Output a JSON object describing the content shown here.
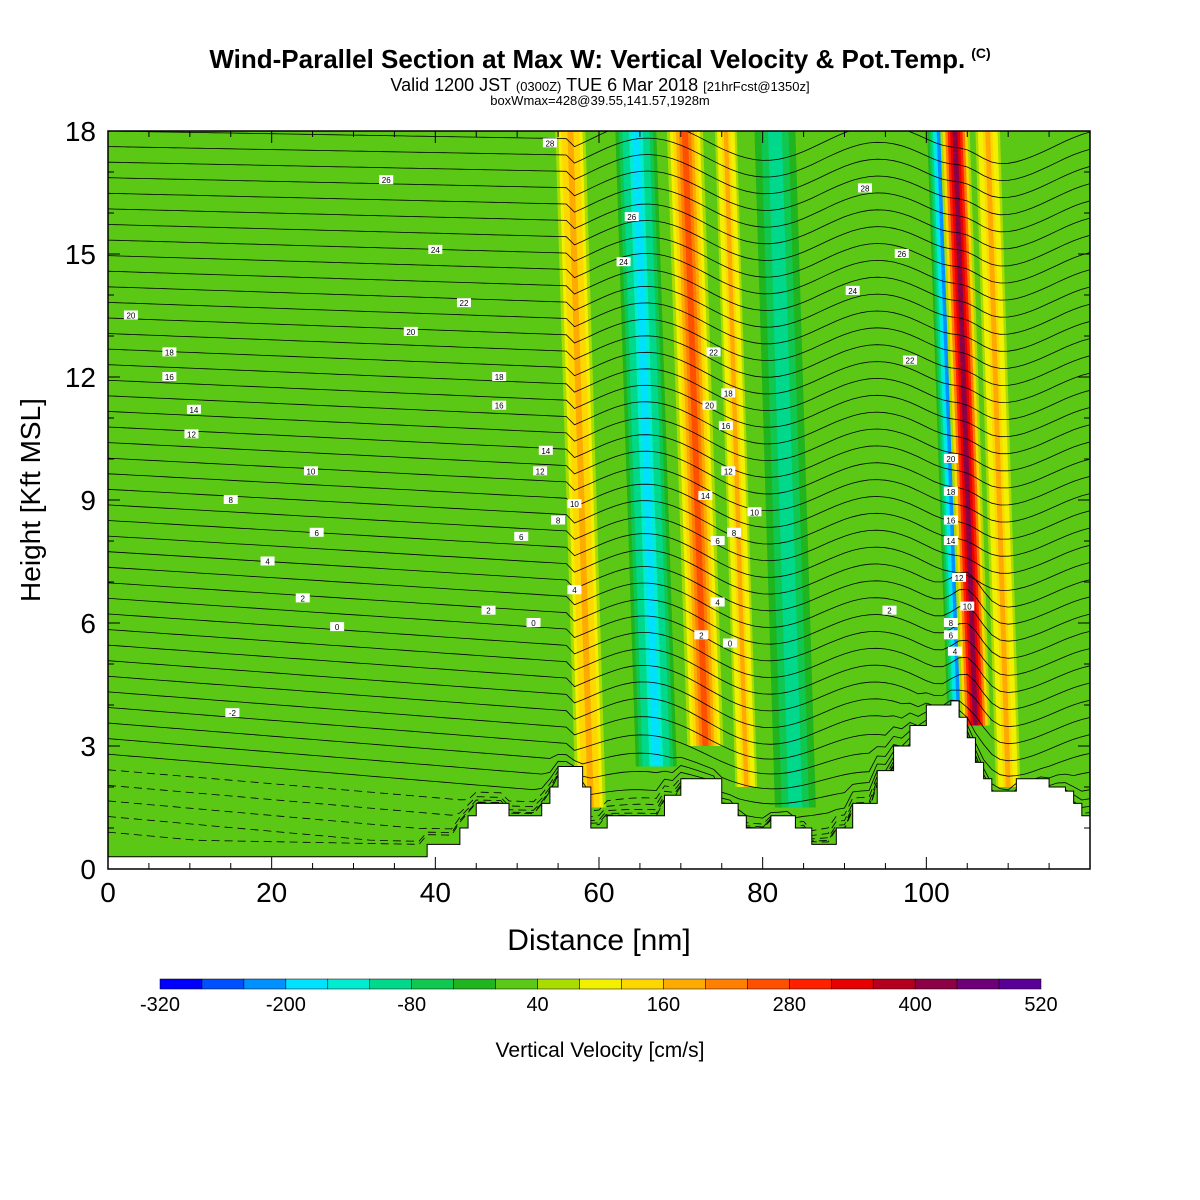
{
  "title": {
    "main": "Wind-Parallel Section at Max W: Vertical Velocity & Pot.Temp.",
    "copyright": "(C)",
    "valid_prefix": "Valid 1200 JST",
    "valid_utc": "(0300Z)",
    "valid_date": "TUE 6 Mar 2018",
    "valid_fcst": "[21hrFcst@1350z]",
    "box_info": "boxWmax=428@39.55,141.57,1928m"
  },
  "chart_data": {
    "type": "heatmap",
    "xlabel": "Distance [nm]",
    "ylabel": "Height [Kft MSL]",
    "xlim": [
      0,
      120
    ],
    "ylim": [
      0,
      18
    ],
    "x_ticks": [
      0,
      20,
      40,
      60,
      80,
      100
    ],
    "y_ticks": [
      0,
      3,
      6,
      9,
      12,
      15,
      18
    ],
    "colorbar": {
      "label": "Vertical Velocity [cm/s]",
      "tick_labels": [
        "-320",
        "-200",
        "-80",
        "40",
        "160",
        "280",
        "400",
        "520"
      ],
      "levels": [
        -320,
        -280,
        -240,
        -200,
        -160,
        -120,
        -80,
        -40,
        0,
        40,
        80,
        120,
        160,
        200,
        240,
        280,
        320,
        360,
        400,
        440,
        480,
        520
      ],
      "colors": [
        "#0000ff",
        "#0050ff",
        "#0090ff",
        "#00e0ff",
        "#00ecd0",
        "#00d98c",
        "#10c850",
        "#20b41e",
        "#5ac814",
        "#aadc00",
        "#f0f000",
        "#ffd700",
        "#ffaa00",
        "#ff8000",
        "#ff5000",
        "#ff2000",
        "#e60000",
        "#b4001e",
        "#8c0046",
        "#6e0078",
        "#5a0096"
      ]
    },
    "terrain_kft": [
      [
        0,
        0.3
      ],
      [
        38,
        0.3
      ],
      [
        39,
        0.6
      ],
      [
        41,
        0.6
      ],
      [
        43,
        1.0
      ],
      [
        44,
        1.3
      ],
      [
        45,
        1.6
      ],
      [
        48,
        1.6
      ],
      [
        49,
        1.3
      ],
      [
        51,
        1.3
      ],
      [
        53,
        1.6
      ],
      [
        54,
        2.0
      ],
      [
        55,
        2.5
      ],
      [
        57,
        2.5
      ],
      [
        58,
        2.0
      ],
      [
        59,
        1.0
      ],
      [
        60,
        1.0
      ],
      [
        61,
        1.3
      ],
      [
        66,
        1.3
      ],
      [
        68,
        1.8
      ],
      [
        70,
        2.2
      ],
      [
        73,
        2.2
      ],
      [
        75,
        1.6
      ],
      [
        77,
        1.3
      ],
      [
        78,
        1.0
      ],
      [
        80,
        1.0
      ],
      [
        81,
        1.3
      ],
      [
        83,
        1.3
      ],
      [
        84,
        1.0
      ],
      [
        86,
        0.6
      ],
      [
        88,
        0.6
      ],
      [
        89,
        1.0
      ],
      [
        91,
        1.6
      ],
      [
        94,
        2.4
      ],
      [
        96,
        3.0
      ],
      [
        98,
        3.5
      ],
      [
        100,
        4.0
      ],
      [
        103,
        4.1
      ],
      [
        104,
        3.7
      ],
      [
        105,
        3.2
      ],
      [
        106,
        2.6
      ],
      [
        107,
        2.2
      ],
      [
        108,
        1.9
      ],
      [
        110,
        1.9
      ],
      [
        111,
        2.2
      ],
      [
        114,
        2.2
      ],
      [
        115,
        2.0
      ],
      [
        117,
        1.9
      ],
      [
        118,
        1.6
      ],
      [
        119,
        1.3
      ],
      [
        120,
        1.3
      ]
    ],
    "w_field_cm_s": {
      "background": 0,
      "bands": [
        {
          "x": 59,
          "width": 2.2,
          "w": 180,
          "z_bottom": 1.5,
          "z_top": 18
        },
        {
          "x": 67,
          "width": 2.5,
          "w": -180,
          "z_bottom": 2.5,
          "z_top": 18
        },
        {
          "x": 73,
          "width": 2.2,
          "w": 270,
          "z_bottom": 3,
          "z_top": 18
        },
        {
          "x": 78,
          "width": 1.6,
          "w": 170,
          "z_bottom": 2,
          "z_top": 18
        },
        {
          "x": 84,
          "width": 2.5,
          "w": -100,
          "z_bottom": 1.5,
          "z_top": 18
        },
        {
          "x": 104,
          "width": 1.4,
          "w": -240,
          "z_bottom": 3.5,
          "z_top": 18
        },
        {
          "x": 106,
          "width": 1.8,
          "w": 428,
          "z_bottom": 3.5,
          "z_top": 18
        },
        {
          "x": 110,
          "width": 1.8,
          "w": 160,
          "z_bottom": 2,
          "z_top": 18
        }
      ]
    },
    "theta_contour_labels": [
      {
        "x": 2.8,
        "y": 13.5,
        "text": "20"
      },
      {
        "x": 7.5,
        "y": 12.6,
        "text": "18"
      },
      {
        "x": 7.5,
        "y": 12.0,
        "text": "16"
      },
      {
        "x": 10.5,
        "y": 11.2,
        "text": "14"
      },
      {
        "x": 10.2,
        "y": 10.6,
        "text": "12"
      },
      {
        "x": 24.8,
        "y": 9.7,
        "text": "10"
      },
      {
        "x": 15.0,
        "y": 9.0,
        "text": "8"
      },
      {
        "x": 25.5,
        "y": 8.2,
        "text": "6"
      },
      {
        "x": 19.5,
        "y": 7.5,
        "text": "4"
      },
      {
        "x": 23.8,
        "y": 6.6,
        "text": "2"
      },
      {
        "x": 28.0,
        "y": 5.9,
        "text": "0"
      },
      {
        "x": 15.2,
        "y": 3.8,
        "text": "-2"
      },
      {
        "x": 34.0,
        "y": 16.8,
        "text": "26"
      },
      {
        "x": 40.0,
        "y": 15.1,
        "text": "24"
      },
      {
        "x": 43.5,
        "y": 13.8,
        "text": "22"
      },
      {
        "x": 37.0,
        "y": 13.1,
        "text": "20"
      },
      {
        "x": 47.8,
        "y": 12.0,
        "text": "18"
      },
      {
        "x": 47.8,
        "y": 11.3,
        "text": "16"
      },
      {
        "x": 53.5,
        "y": 10.2,
        "text": "14"
      },
      {
        "x": 52.8,
        "y": 9.7,
        "text": "12"
      },
      {
        "x": 57.0,
        "y": 8.9,
        "text": "10"
      },
      {
        "x": 55.0,
        "y": 8.5,
        "text": "8"
      },
      {
        "x": 50.5,
        "y": 8.1,
        "text": "6"
      },
      {
        "x": 57.0,
        "y": 6.8,
        "text": "4"
      },
      {
        "x": 46.5,
        "y": 6.3,
        "text": "2"
      },
      {
        "x": 52.0,
        "y": 6.0,
        "text": "0"
      },
      {
        "x": 54.0,
        "y": 17.7,
        "text": "28"
      },
      {
        "x": 64.0,
        "y": 15.9,
        "text": "26"
      },
      {
        "x": 63.0,
        "y": 14.8,
        "text": "24"
      },
      {
        "x": 74.0,
        "y": 12.6,
        "text": "22"
      },
      {
        "x": 73.5,
        "y": 11.3,
        "text": "20"
      },
      {
        "x": 75.8,
        "y": 11.6,
        "text": "18"
      },
      {
        "x": 75.5,
        "y": 10.8,
        "text": "16"
      },
      {
        "x": 75.8,
        "y": 9.7,
        "text": "12"
      },
      {
        "x": 73.0,
        "y": 9.1,
        "text": "14"
      },
      {
        "x": 79.0,
        "y": 8.7,
        "text": "10"
      },
      {
        "x": 74.5,
        "y": 8.0,
        "text": "6"
      },
      {
        "x": 76.5,
        "y": 8.2,
        "text": "8"
      },
      {
        "x": 74.5,
        "y": 6.5,
        "text": "4"
      },
      {
        "x": 72.5,
        "y": 5.7,
        "text": "2"
      },
      {
        "x": 76.0,
        "y": 5.5,
        "text": "0"
      },
      {
        "x": 92.5,
        "y": 16.6,
        "text": "28"
      },
      {
        "x": 97.0,
        "y": 15.0,
        "text": "26"
      },
      {
        "x": 91.0,
        "y": 14.1,
        "text": "24"
      },
      {
        "x": 98.0,
        "y": 12.4,
        "text": "22"
      },
      {
        "x": 103.0,
        "y": 10.0,
        "text": "20"
      },
      {
        "x": 103.0,
        "y": 9.2,
        "text": "18"
      },
      {
        "x": 103.0,
        "y": 8.5,
        "text": "16"
      },
      {
        "x": 103.0,
        "y": 8.0,
        "text": "14"
      },
      {
        "x": 104.0,
        "y": 7.1,
        "text": "12"
      },
      {
        "x": 105.0,
        "y": 6.4,
        "text": "10"
      },
      {
        "x": 103.0,
        "y": 6.0,
        "text": "8"
      },
      {
        "x": 103.0,
        "y": 5.7,
        "text": "6"
      },
      {
        "x": 103.5,
        "y": 5.3,
        "text": "4"
      },
      {
        "x": 95.5,
        "y": 6.3,
        "text": "2"
      }
    ]
  }
}
